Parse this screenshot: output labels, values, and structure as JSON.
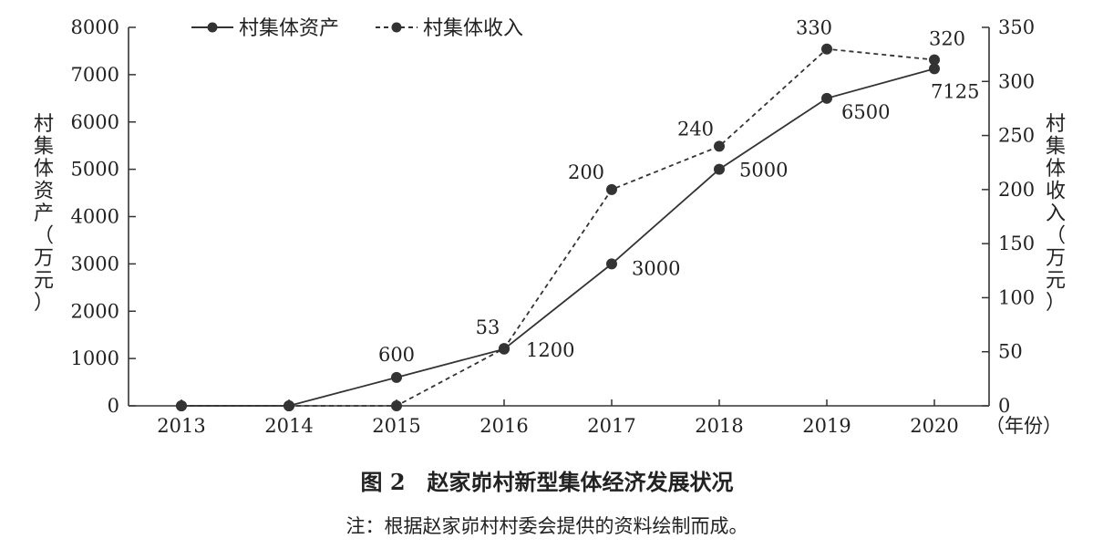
{
  "chart_data": {
    "type": "line",
    "categories": [
      "2013",
      "2014",
      "2015",
      "2016",
      "2017",
      "2018",
      "2019",
      "2020"
    ],
    "x_unit": "（年份）",
    "left_axis": {
      "label": "村集体资产（万元）",
      "ylim": [
        0,
        8000
      ],
      "ticks": [
        "0",
        "1000",
        "2000",
        "3000",
        "4000",
        "5000",
        "6000",
        "7000",
        "8000"
      ]
    },
    "right_axis": {
      "label": "村集体收入（万元）",
      "ylim": [
        0,
        350
      ],
      "ticks": [
        "0",
        "50",
        "100",
        "150",
        "200",
        "250",
        "300",
        "350"
      ]
    },
    "series": [
      {
        "name": "村集体资产",
        "axis": "left",
        "style": "solid",
        "values": [
          0,
          0,
          600,
          1200,
          3000,
          5000,
          6500,
          7125
        ],
        "labels": [
          "",
          "",
          "600",
          "1200",
          "3000",
          "5000",
          "6500",
          "7125"
        ]
      },
      {
        "name": "村集体收入",
        "axis": "right",
        "style": "dashed",
        "values": [
          0,
          0,
          0,
          53,
          200,
          240,
          330,
          320
        ],
        "labels": [
          "",
          "",
          "",
          "53",
          "200",
          "240",
          "330",
          "320"
        ]
      }
    ],
    "legend_position": "top",
    "grid": false,
    "line_color": "#333333"
  },
  "figure_title": "图 2　赵家峁村新型集体经济发展状况",
  "note": "注：根据赵家峁村村委会提供的资料绘制而成。"
}
